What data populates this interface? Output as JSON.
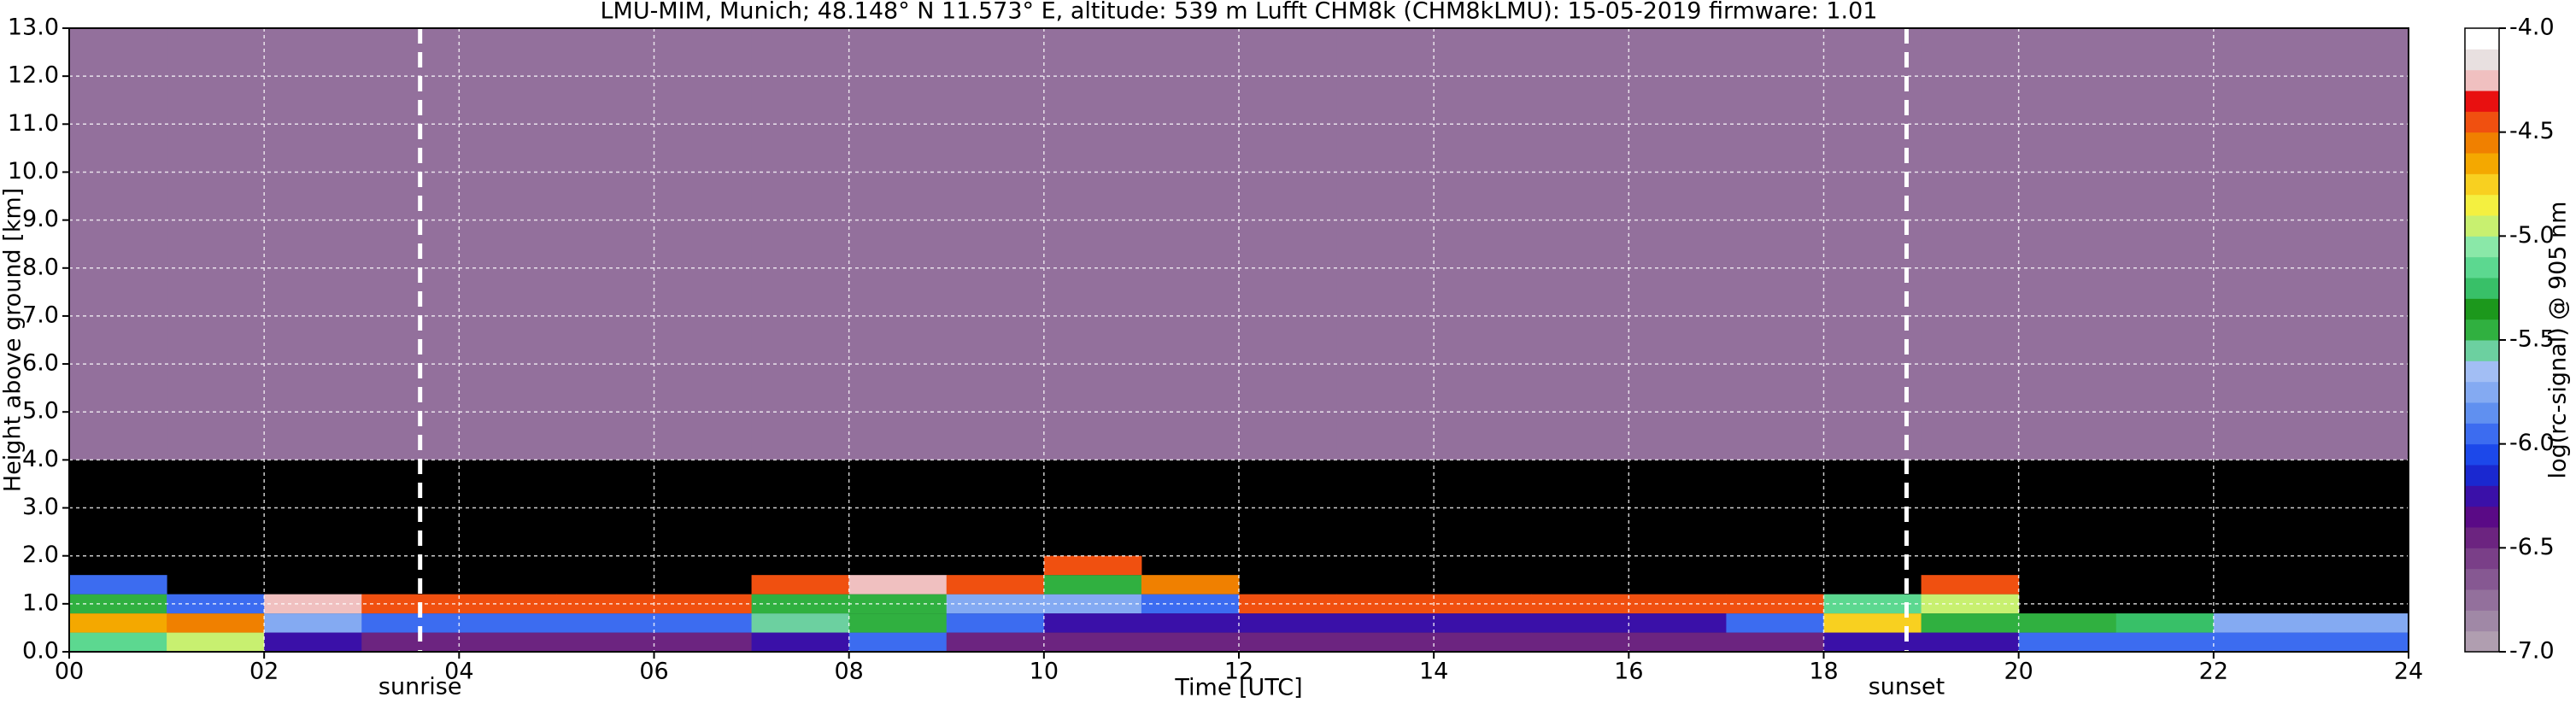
{
  "chart_data": {
    "type": "heatmap",
    "title": "LMU-MIM, Munich; 48.148° N 11.573° E, altitude: 539 m    Lufft CHM8k (CHM8kLMU): 15-05-2019    firmware: 1.01",
    "x_label": "Time [UTC]",
    "y_label": "Height above ground [km]",
    "colorbar_label": "log(rc-signal) @ 905 nm",
    "xlim": [
      0,
      24
    ],
    "ylim": [
      0,
      13
    ],
    "xticks": [
      {
        "value": 0,
        "label": "00"
      },
      {
        "value": 2,
        "label": "02"
      },
      {
        "value": 4,
        "label": "04"
      },
      {
        "value": 6,
        "label": "06"
      },
      {
        "value": 8,
        "label": "08"
      },
      {
        "value": 10,
        "label": "10"
      },
      {
        "value": 12,
        "label": "12"
      },
      {
        "value": 14,
        "label": "14"
      },
      {
        "value": 16,
        "label": "16"
      },
      {
        "value": 18,
        "label": "18"
      },
      {
        "value": 20,
        "label": "20"
      },
      {
        "value": 22,
        "label": "22"
      },
      {
        "value": 24,
        "label": "24"
      }
    ],
    "yticks": [
      {
        "value": 0,
        "label": "0.0"
      },
      {
        "value": 1,
        "label": "1.0"
      },
      {
        "value": 2,
        "label": "2.0"
      },
      {
        "value": 3,
        "label": "3.0"
      },
      {
        "value": 4,
        "label": "4.0"
      },
      {
        "value": 5,
        "label": "5.0"
      },
      {
        "value": 6,
        "label": "6.0"
      },
      {
        "value": 7,
        "label": "7.0"
      },
      {
        "value": 8,
        "label": "8.0"
      },
      {
        "value": 9,
        "label": "9.0"
      },
      {
        "value": 10,
        "label": "10.0"
      },
      {
        "value": 11,
        "label": "11.0"
      },
      {
        "value": 12,
        "label": "12.0"
      },
      {
        "value": 13,
        "label": "13.0"
      }
    ],
    "grid": true,
    "x_edges": [
      0,
      1,
      2,
      3,
      4,
      5,
      6,
      7,
      8,
      9,
      10,
      11,
      12,
      13,
      14,
      15,
      16,
      17,
      18,
      19,
      20,
      21,
      22,
      23,
      24
    ],
    "y_edges": [
      0,
      0.4,
      0.8,
      1.2,
      1.6,
      2.0,
      4.0,
      13.0
    ],
    "z": [
      [
        -5.2,
        -4.7,
        -5.4,
        -5.9,
        null,
        null,
        -6.8
      ],
      [
        -5.0,
        -4.6,
        -6.0,
        null,
        null,
        null,
        -6.8
      ],
      [
        -6.3,
        -5.8,
        -4.3,
        null,
        null,
        null,
        -6.8
      ],
      [
        -6.4,
        -6.0,
        -4.4,
        null,
        null,
        null,
        -6.8
      ],
      [
        -6.4,
        -6.0,
        -4.4,
        null,
        null,
        null,
        -6.8
      ],
      [
        -6.4,
        -6.0,
        -4.4,
        null,
        null,
        null,
        -6.8
      ],
      [
        -6.4,
        -6.0,
        -4.4,
        null,
        null,
        null,
        -6.8
      ],
      [
        -6.2,
        -5.6,
        -5.5,
        -4.4,
        null,
        null,
        -6.8
      ],
      [
        -6.0,
        -5.5,
        -5.4,
        -4.3,
        null,
        null,
        -6.8
      ],
      [
        -6.5,
        -5.9,
        -5.8,
        -4.5,
        null,
        null,
        -6.8
      ],
      [
        -6.5,
        -6.2,
        -5.8,
        -5.5,
        -4.4,
        null,
        -6.7
      ],
      [
        -6.5,
        -6.3,
        -6.0,
        -4.6,
        null,
        null,
        -6.7
      ],
      [
        -6.5,
        -6.2,
        -4.4,
        null,
        null,
        null,
        -6.7
      ],
      [
        -6.5,
        -6.2,
        -4.4,
        null,
        null,
        null,
        -6.7
      ],
      [
        -6.5,
        -6.2,
        -4.4,
        null,
        null,
        null,
        -6.7
      ],
      [
        -6.5,
        -6.2,
        -4.4,
        null,
        null,
        null,
        -6.7
      ],
      [
        -6.5,
        -6.2,
        -4.4,
        null,
        null,
        null,
        -6.7
      ],
      [
        -6.4,
        -6.0,
        -4.5,
        null,
        null,
        null,
        -6.8
      ],
      [
        -6.3,
        -4.8,
        -5.2,
        null,
        null,
        null,
        -6.8
      ],
      [
        -6.2,
        -5.4,
        -5.0,
        -4.5,
        null,
        null,
        -6.8
      ],
      [
        -6.0,
        -5.4,
        null,
        null,
        null,
        null,
        -6.8
      ],
      [
        -6.0,
        -5.3,
        null,
        null,
        null,
        null,
        -6.8
      ],
      [
        -6.0,
        -5.7,
        null,
        null,
        null,
        null,
        -6.8
      ],
      [
        -6.0,
        -5.7,
        null,
        null,
        null,
        null,
        -6.8
      ]
    ],
    "colorbar": {
      "lim": [
        -7,
        -4
      ],
      "ticks": [
        {
          "value": -7,
          "label": "-7.0"
        },
        {
          "value": -6.5,
          "label": "-6.5"
        },
        {
          "value": -6,
          "label": "-6.0"
        },
        {
          "value": -5.5,
          "label": "-5.5"
        },
        {
          "value": -5,
          "label": "-5.0"
        },
        {
          "value": -4.5,
          "label": "-4.5"
        },
        {
          "value": -4,
          "label": "-4.0"
        }
      ],
      "colors": [
        "#b09eb0",
        "#a088a6",
        "#93709c",
        "#865892",
        "#7a3f88",
        "#6c2480",
        "#5a0a86",
        "#3a10a8",
        "#1a28d0",
        "#1c48ea",
        "#3c6cf0",
        "#6090f0",
        "#84aaf2",
        "#a2bef4",
        "#6cd0a0",
        "#30b040",
        "#1c981c",
        "#38c068",
        "#5cd890",
        "#8ae8a8",
        "#c8f070",
        "#f4f040",
        "#f8d020",
        "#f4a800",
        "#f08000",
        "#f05010",
        "#e81010",
        "#f0c0c0",
        "#e8e0e0",
        "#ffffff"
      ]
    },
    "annotations": [
      {
        "x": 3.6,
        "label": "sunrise"
      },
      {
        "x": 18.85,
        "label": "sunset"
      }
    ]
  }
}
